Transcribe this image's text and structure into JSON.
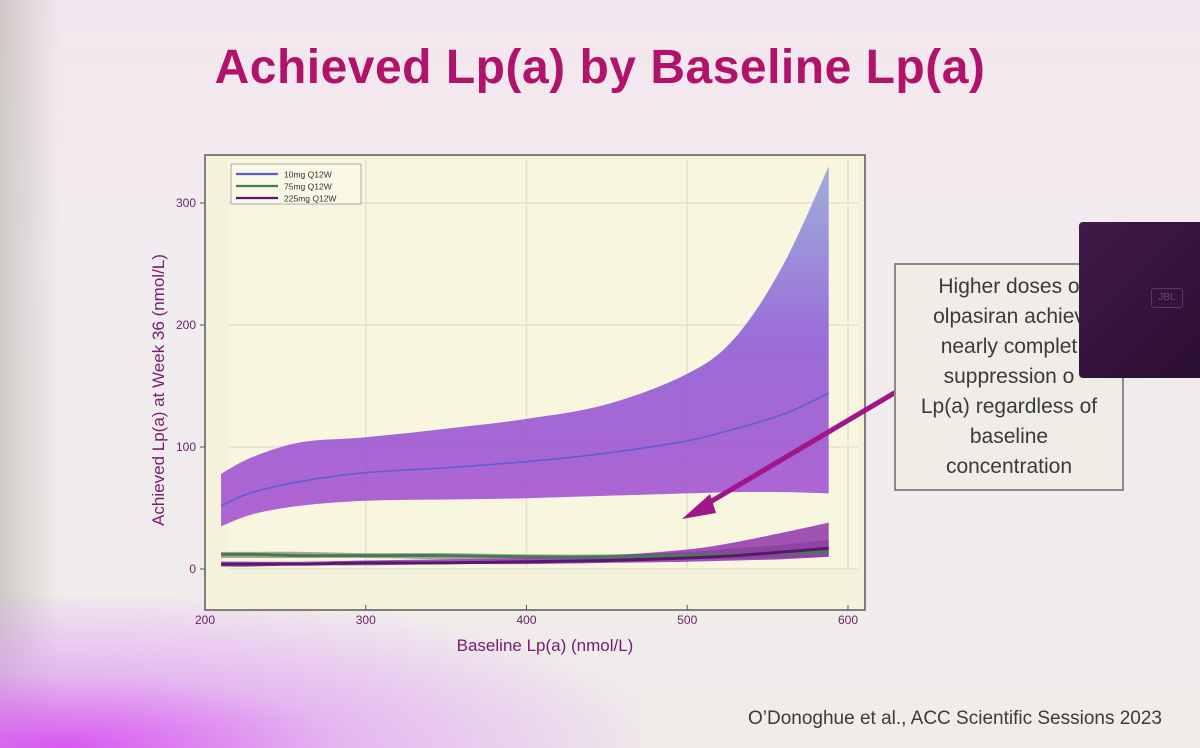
{
  "slide": {
    "title": "Achieved Lp(a) by Baseline Lp(a)",
    "citation": "O’Donoghue et al., ACC Scientific Sessions 2023",
    "callout": "Higher doses of olpasiran achieve nearly complete suppression of Lp(a) regardless of baseline concentration",
    "callout_visible_text": "Higher doses o\nolpasiran achiev\nnearly complet\nsuppression o\nLp(a) regardless of\nbaseline\nconcentration",
    "speaker_logo": "JBL"
  },
  "colors": {
    "title": "#b1136a",
    "axis_label": "#7a1a70",
    "tick": "#6a1f66",
    "band_top": "#8fa6dc",
    "band_mid": "#8e58d6",
    "band_bottom": "#a64fd0",
    "line_10mg": "#5a5fd0",
    "line_75mg": "#4a7a55",
    "line_225mg": "#5c1670",
    "arrow": "#a0168a"
  },
  "chart_data": {
    "type": "line",
    "title": "",
    "xlabel": "Baseline Lp(a) (nmol/L)",
    "ylabel": "Achieved Lp(a) at Week 36 (nmol/L)",
    "xlim": [
      200,
      600
    ],
    "ylim": [
      -10,
      335
    ],
    "x_ticks": [
      200,
      300,
      400,
      500,
      600
    ],
    "y_ticks": [
      0,
      100,
      200,
      300
    ],
    "x_tick_labels": [
      "200",
      "300",
      "400",
      "500",
      "600"
    ],
    "y_tick_labels": [
      "0",
      "100",
      "200",
      "300"
    ],
    "grid": true,
    "legend_position": "top-left",
    "x": [
      210,
      230,
      260,
      300,
      350,
      400,
      450,
      500,
      530,
      560,
      588
    ],
    "series": [
      {
        "name": "10mg Q12W",
        "values": [
          52,
          63,
          72,
          79,
          83,
          88,
          95,
          105,
          115,
          127,
          144
        ],
        "lower": [
          35,
          45,
          52,
          56,
          57,
          58,
          60,
          62,
          63,
          63,
          62
        ],
        "upper": [
          78,
          92,
          104,
          108,
          115,
          123,
          135,
          160,
          190,
          250,
          330
        ]
      },
      {
        "name": "75mg Q12W",
        "values": [
          12,
          12,
          11,
          11,
          11,
          10,
          10,
          11,
          12,
          13,
          14
        ],
        "lower": [
          9,
          9,
          9,
          9,
          8,
          8,
          8,
          8,
          8,
          9,
          10
        ],
        "upper": [
          14,
          14,
          14,
          13,
          13,
          12,
          12,
          14,
          17,
          20,
          24
        ]
      },
      {
        "name": "225mg Q12W",
        "values": [
          4,
          4,
          4,
          5,
          5,
          6,
          7,
          9,
          11,
          14,
          17
        ],
        "lower": [
          2,
          2,
          3,
          3,
          4,
          4,
          5,
          6,
          7,
          8,
          10
        ],
        "upper": [
          6,
          6,
          6,
          7,
          8,
          9,
          11,
          16,
          22,
          30,
          38
        ]
      }
    ]
  }
}
